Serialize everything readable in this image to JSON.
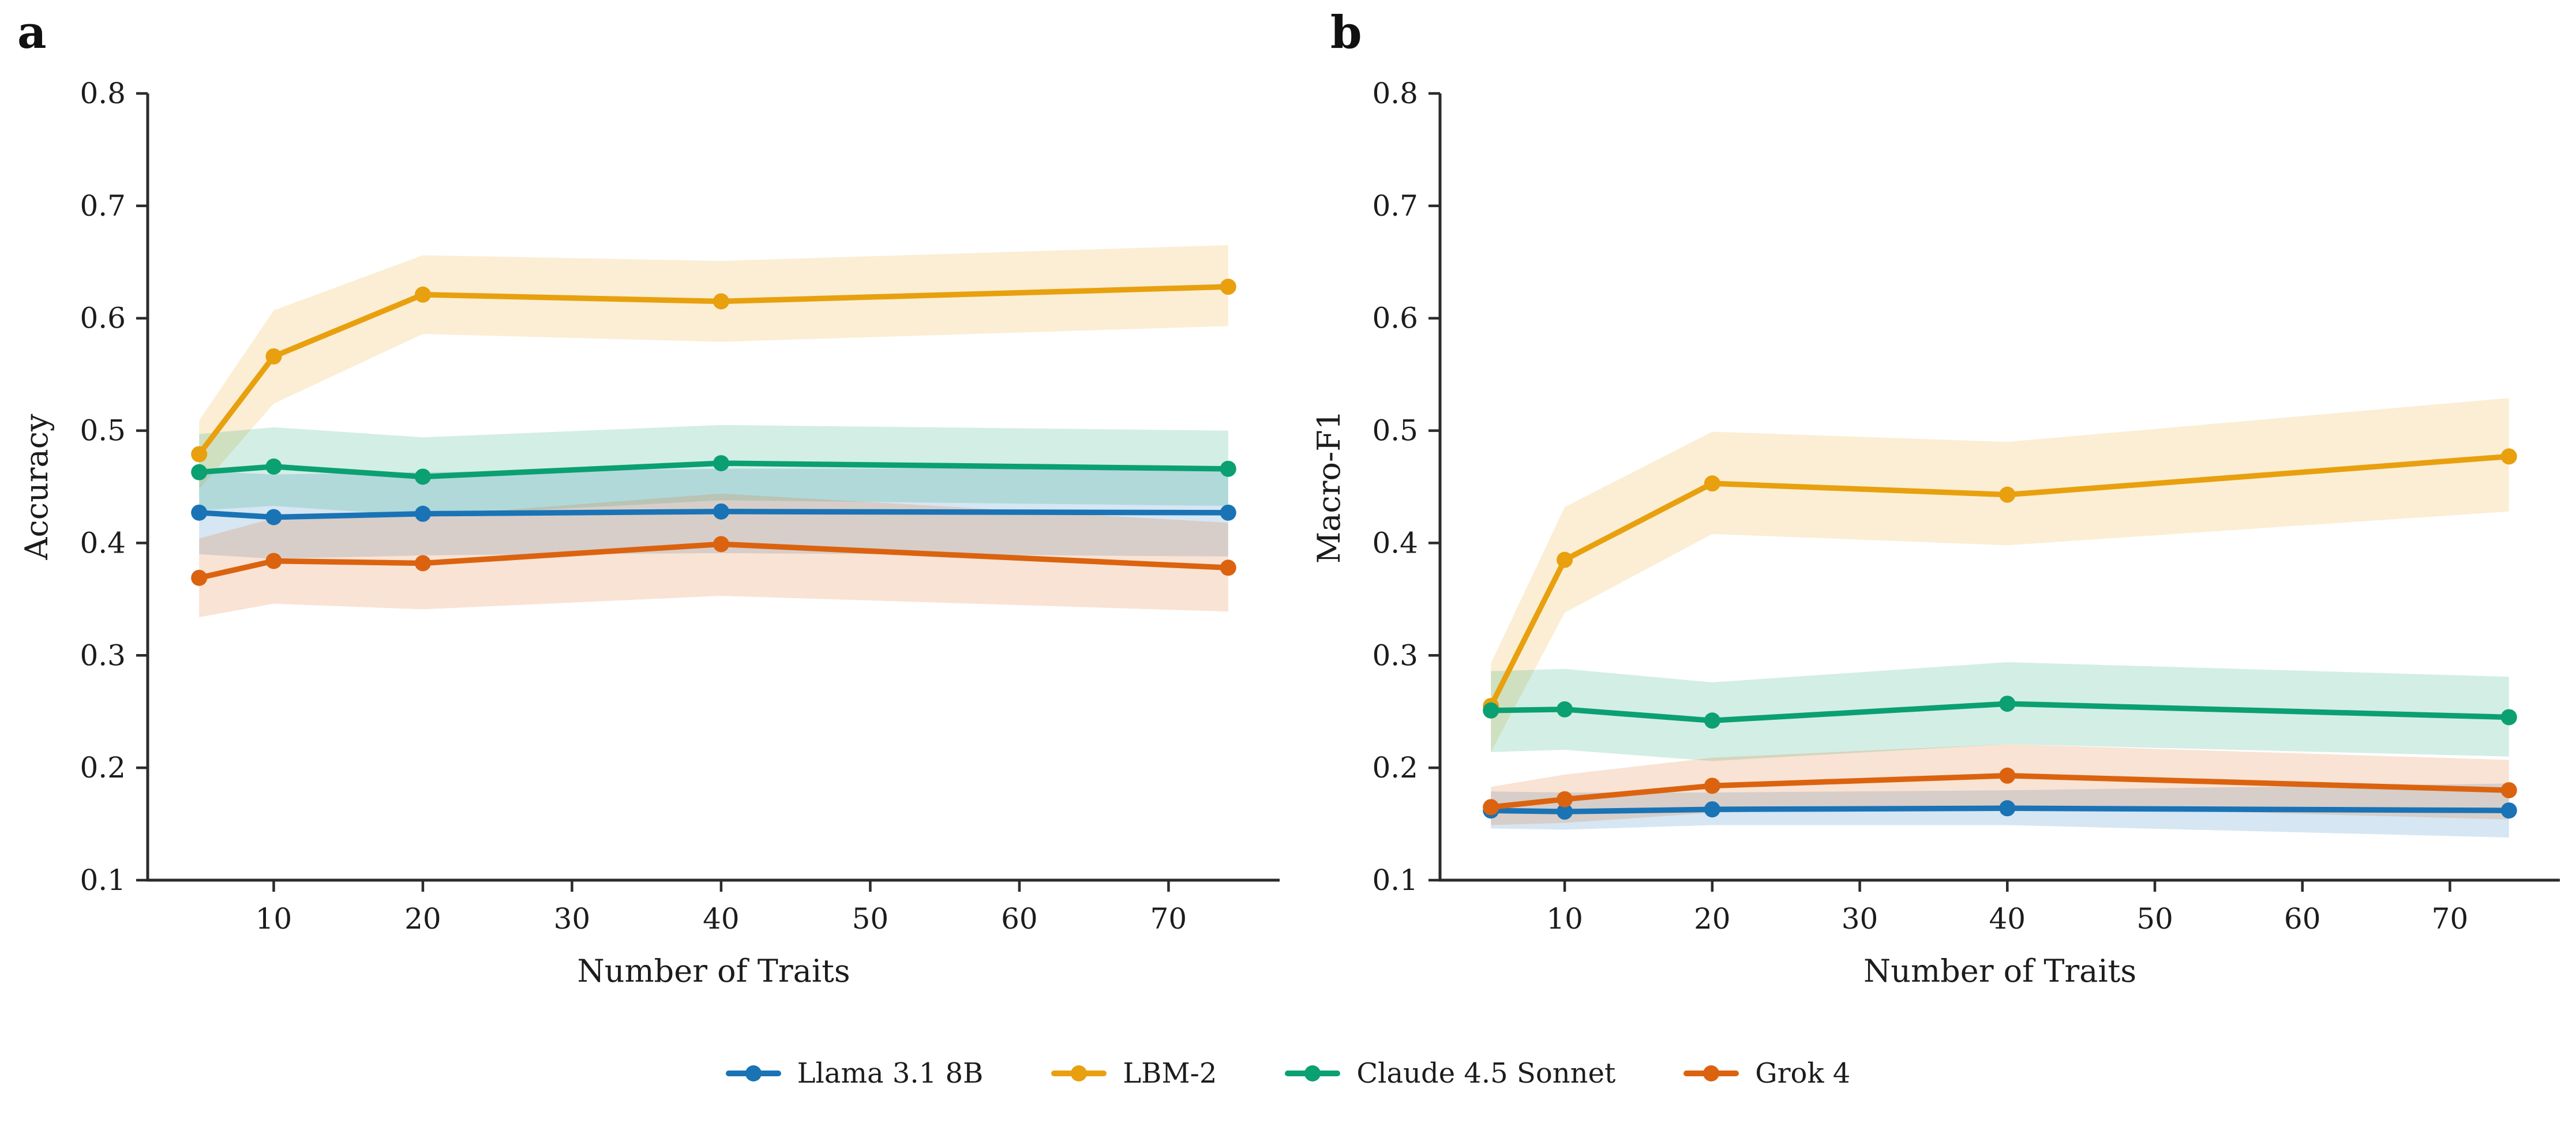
{
  "figure": {
    "panels": [
      {
        "label": "a"
      },
      {
        "label": "b"
      }
    ]
  },
  "colors": {
    "llama": "#1A73B5",
    "lbm2": "#E8A00E",
    "claude": "#0BA071",
    "grok": "#DB6310",
    "axis": "#2b2b2b",
    "text": "#1c1c1c"
  },
  "legend": {
    "items": [
      {
        "id": "llama-3-1-8b",
        "label": "Llama 3.1 8B",
        "color": "#1A73B5"
      },
      {
        "id": "lbm-2",
        "label": "LBM-2",
        "color": "#E8A00E"
      },
      {
        "id": "claude-4-5-sonnet",
        "label": "Claude 4.5 Sonnet",
        "color": "#0BA071"
      },
      {
        "id": "grok-4",
        "label": "Grok 4",
        "color": "#DB6310"
      }
    ]
  },
  "chart_data": [
    {
      "type": "line",
      "panel": "a",
      "xlabel": "Number of Traits",
      "ylabel": "Accuracy",
      "x": [
        5,
        10,
        20,
        40,
        74
      ],
      "xticks": [
        10,
        20,
        30,
        40,
        50,
        60,
        70
      ],
      "yticks": [
        0.1,
        0.2,
        0.3,
        0.4,
        0.5,
        0.6,
        0.7,
        0.8
      ],
      "xlim": [
        1.55,
        77.45
      ],
      "ylim": [
        0.1,
        0.8
      ],
      "grid": false,
      "legend_position": "below-figure",
      "series": [
        {
          "name": "Llama 3.1 8B",
          "color": "#1A73B5",
          "values": [
            0.427,
            0.423,
            0.426,
            0.428,
            0.427
          ],
          "band_low": [
            0.39,
            0.386,
            0.389,
            0.391,
            0.388
          ],
          "band_high": [
            0.464,
            0.461,
            0.463,
            0.466,
            0.467
          ]
        },
        {
          "name": "LBM-2",
          "color": "#E8A00E",
          "values": [
            0.479,
            0.566,
            0.621,
            0.615,
            0.628
          ],
          "band_low": [
            0.448,
            0.524,
            0.586,
            0.579,
            0.593
          ],
          "band_high": [
            0.509,
            0.607,
            0.656,
            0.651,
            0.665
          ]
        },
        {
          "name": "Claude 4.5 Sonnet",
          "color": "#0BA071",
          "values": [
            0.463,
            0.468,
            0.459,
            0.471,
            0.466
          ],
          "band_low": [
            0.429,
            0.433,
            0.424,
            0.438,
            0.433
          ],
          "band_high": [
            0.497,
            0.503,
            0.494,
            0.505,
            0.5
          ]
        },
        {
          "name": "Grok 4",
          "color": "#DB6310",
          "values": [
            0.369,
            0.384,
            0.382,
            0.399,
            0.378
          ],
          "band_low": [
            0.334,
            0.346,
            0.341,
            0.353,
            0.339
          ],
          "band_high": [
            0.404,
            0.422,
            0.424,
            0.444,
            0.418
          ]
        }
      ]
    },
    {
      "type": "line",
      "panel": "b",
      "xlabel": "Number of Traits",
      "ylabel": "Macro-F1",
      "x": [
        5,
        10,
        20,
        40,
        74
      ],
      "xticks": [
        10,
        20,
        30,
        40,
        50,
        60,
        70
      ],
      "yticks": [
        0.1,
        0.2,
        0.3,
        0.4,
        0.5,
        0.6,
        0.7,
        0.8
      ],
      "xlim": [
        1.55,
        77.45
      ],
      "ylim": [
        0.1,
        0.8
      ],
      "grid": false,
      "legend_position": "below-figure",
      "series": [
        {
          "name": "Llama 3.1 8B",
          "color": "#1A73B5",
          "values": [
            0.162,
            0.161,
            0.163,
            0.164,
            0.162
          ],
          "band_low": [
            0.146,
            0.145,
            0.149,
            0.149,
            0.138
          ],
          "band_high": [
            0.179,
            0.178,
            0.178,
            0.18,
            0.186
          ]
        },
        {
          "name": "LBM-2",
          "color": "#E8A00E",
          "values": [
            0.255,
            0.385,
            0.453,
            0.443,
            0.477
          ],
          "band_low": [
            0.214,
            0.338,
            0.408,
            0.398,
            0.428
          ],
          "band_high": [
            0.293,
            0.432,
            0.499,
            0.49,
            0.529
          ]
        },
        {
          "name": "Claude 4.5 Sonnet",
          "color": "#0BA071",
          "values": [
            0.251,
            0.252,
            0.242,
            0.257,
            0.245
          ],
          "band_low": [
            0.214,
            0.216,
            0.206,
            0.221,
            0.21
          ],
          "band_high": [
            0.286,
            0.288,
            0.276,
            0.294,
            0.281
          ]
        },
        {
          "name": "Grok 4",
          "color": "#DB6310",
          "values": [
            0.165,
            0.172,
            0.184,
            0.193,
            0.18
          ],
          "band_low": [
            0.149,
            0.151,
            0.16,
            0.166,
            0.154
          ],
          "band_high": [
            0.183,
            0.194,
            0.209,
            0.221,
            0.207
          ]
        }
      ]
    }
  ]
}
